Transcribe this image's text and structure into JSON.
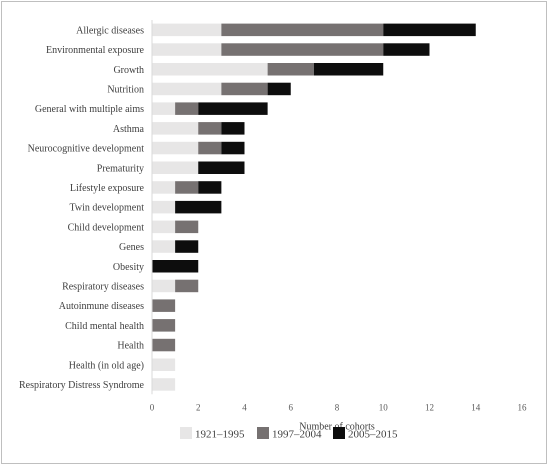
{
  "chart_data": {
    "type": "bar",
    "orientation": "horizontal",
    "stacked": true,
    "categories": [
      "Allergic diseases",
      "Environmental exposure",
      "Growth",
      "Nutrition",
      "General with multiple aims",
      "Asthma",
      "Neurocognitive development",
      "Prematurity",
      "Lifestyle exposure",
      "Twin development",
      "Child development",
      "Genes",
      "Obesity",
      "Respiratory diseases",
      "Autoinmune diseases",
      "Child mental health",
      "Health",
      "Health (in old age)",
      "Respiratory Distress Syndrome"
    ],
    "series": [
      {
        "name": "1921–1995",
        "color": "#e7e6e6",
        "values": [
          3,
          3,
          5,
          3,
          1,
          2,
          2,
          2,
          1,
          1,
          1,
          1,
          0,
          1,
          0,
          0,
          0,
          1,
          1
        ]
      },
      {
        "name": "1997–2004",
        "color": "#767171",
        "values": [
          7,
          7,
          2,
          2,
          1,
          1,
          1,
          0,
          1,
          0,
          1,
          0,
          0,
          1,
          1,
          1,
          1,
          0,
          0
        ]
      },
      {
        "name": "2005–2015",
        "color": "#0d0d0d",
        "values": [
          4,
          2,
          3,
          1,
          3,
          1,
          1,
          2,
          1,
          2,
          0,
          1,
          2,
          0,
          0,
          0,
          0,
          0,
          0
        ]
      }
    ],
    "xlabel": "Number of cohorts",
    "ylabel": "",
    "title": "",
    "xlim": [
      0,
      16
    ],
    "xticks": [
      0,
      2,
      4,
      6,
      8,
      10,
      12,
      14,
      16
    ],
    "grid": false,
    "legend_position": "bottom"
  }
}
